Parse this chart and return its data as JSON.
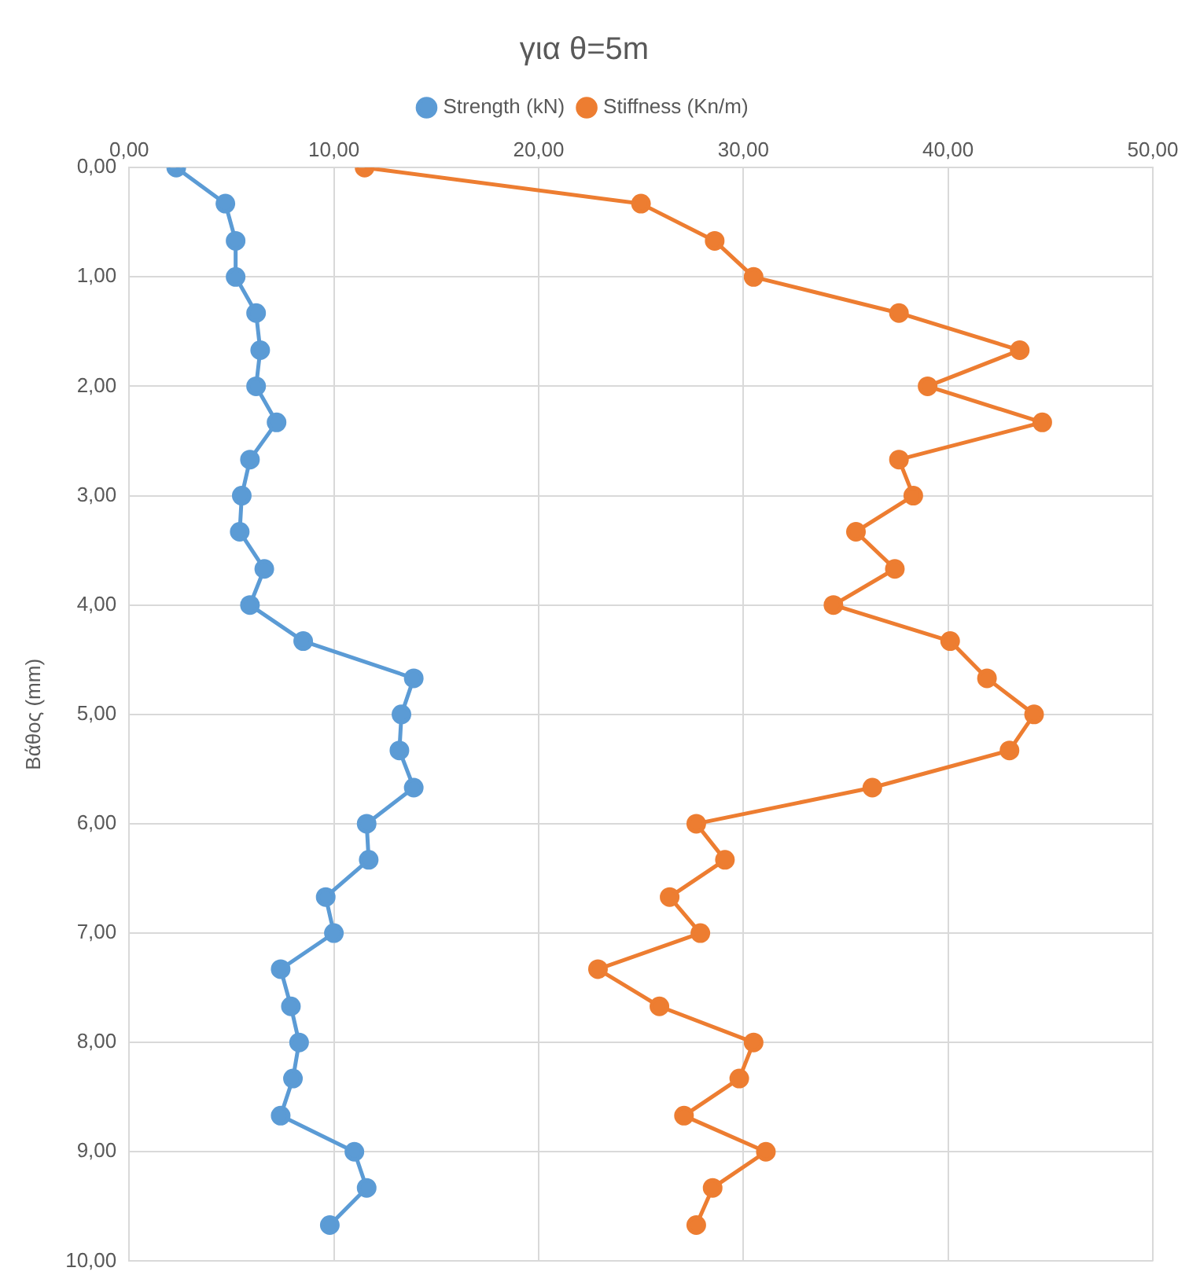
{
  "chart_data": {
    "type": "line",
    "title": "για θ=5m",
    "ylabel": "Βάθος (mm)",
    "legend": "top",
    "grid": true,
    "marker": "circle",
    "line_style": "solid",
    "xlim": [
      0,
      50
    ],
    "xticks": [
      {
        "value": 0,
        "label": "0,00"
      },
      {
        "value": 10,
        "label": "10,00"
      },
      {
        "value": 20,
        "label": "20,00"
      },
      {
        "value": 30,
        "label": "30,00"
      },
      {
        "value": 40,
        "label": "40,00"
      },
      {
        "value": 50,
        "label": "50,00"
      }
    ],
    "ylim": [
      10,
      0
    ],
    "yticks": [
      {
        "value": 0,
        "label": "0,00"
      },
      {
        "value": 1,
        "label": "1,00"
      },
      {
        "value": 2,
        "label": "2,00"
      },
      {
        "value": 3,
        "label": "3,00"
      },
      {
        "value": 4,
        "label": "4,00"
      },
      {
        "value": 5,
        "label": "5,00"
      },
      {
        "value": 6,
        "label": "6,00"
      },
      {
        "value": 7,
        "label": "7,00"
      },
      {
        "value": 8,
        "label": "8,00"
      },
      {
        "value": 9,
        "label": "9,00"
      },
      {
        "value": 10,
        "label": "10,00"
      }
    ],
    "series": [
      {
        "name": "Strength (kN)",
        "color": "#5b9bd5",
        "x": [
          2.3,
          4.7,
          5.2,
          5.2,
          6.2,
          6.4,
          6.2,
          7.2,
          5.9,
          5.5,
          5.4,
          6.6,
          5.9,
          8.5,
          13.9,
          13.3,
          13.2,
          13.9,
          11.6,
          11.7,
          9.6,
          10.0,
          7.4,
          7.9,
          8.3,
          8.0,
          7.4,
          11.0,
          11.6,
          9.8
        ],
        "values": [
          0,
          0.33,
          0.67,
          1,
          1.33,
          1.67,
          2,
          2.33,
          2.67,
          3,
          3.33,
          3.67,
          4,
          4.33,
          4.67,
          5,
          5.33,
          5.67,
          6,
          6.33,
          6.67,
          7,
          7.33,
          7.67,
          8,
          8.33,
          8.67,
          9,
          9.33,
          9.67
        ]
      },
      {
        "name": "Stiffness (Kn/m)",
        "color": "#ed7d31",
        "x": [
          11.5,
          25.0,
          28.6,
          30.5,
          37.6,
          43.5,
          39.0,
          44.6,
          37.6,
          38.3,
          35.5,
          37.4,
          34.4,
          40.1,
          41.9,
          44.2,
          43.0,
          36.3,
          27.7,
          29.1,
          26.4,
          27.9,
          22.9,
          25.9,
          30.5,
          29.8,
          27.1,
          31.1,
          28.5,
          27.7
        ],
        "values": [
          0,
          0.33,
          0.67,
          1,
          1.33,
          1.67,
          2,
          2.33,
          2.67,
          3,
          3.33,
          3.67,
          4,
          4.33,
          4.67,
          5,
          5.33,
          5.67,
          6,
          6.33,
          6.67,
          7,
          7.33,
          7.67,
          8,
          8.33,
          8.67,
          9,
          9.33,
          9.67
        ]
      }
    ]
  }
}
